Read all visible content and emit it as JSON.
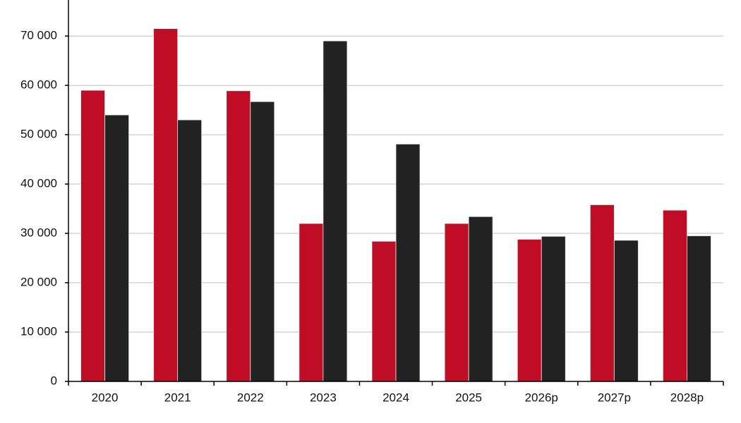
{
  "chart_data": {
    "type": "bar",
    "categories": [
      "2020",
      "2021",
      "2022",
      "2023",
      "2024",
      "2025",
      "2026p",
      "2027p",
      "2028p"
    ],
    "series": [
      {
        "color": "#c00d26",
        "values": [
          59000,
          71500,
          58900,
          32000,
          28400,
          32000,
          28800,
          35800,
          34700
        ]
      },
      {
        "color": "#222222",
        "values": [
          54000,
          53000,
          56700,
          69000,
          48100,
          33400,
          29400,
          28600,
          29500
        ]
      }
    ],
    "ylim": [
      0,
      77300
    ],
    "yticks": [
      0,
      {
        "value": 10000,
        "label": "10 000"
      },
      {
        "value": 20000,
        "label": "20 000"
      },
      {
        "value": 30000,
        "label": "30 000"
      },
      {
        "value": 40000,
        "label": "40 000"
      },
      {
        "value": 50000,
        "label": "50 000"
      },
      {
        "value": 60000,
        "label": "60 000"
      },
      {
        "value": 70000,
        "label": "70 000"
      }
    ],
    "grid": true
  }
}
